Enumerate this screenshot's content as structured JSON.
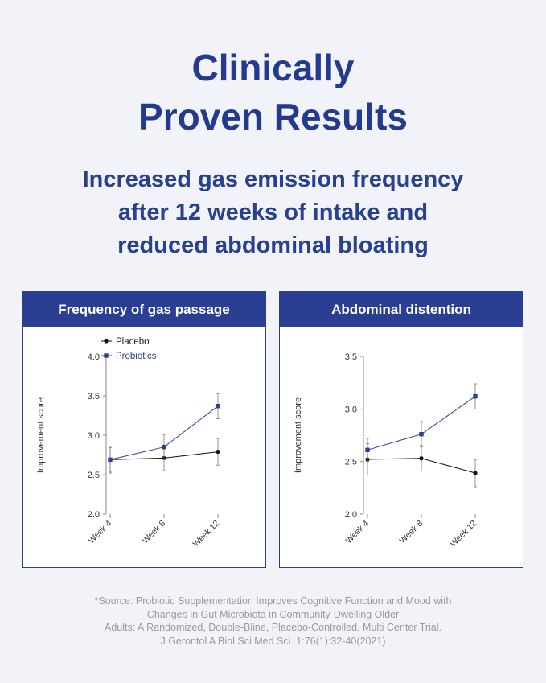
{
  "title": {
    "line1": "Clinically",
    "line2": "Proven Results"
  },
  "subtitle": {
    "line1": "Increased gas emission frequency",
    "line2": "after 12 weeks of intake and",
    "line3": "reduced abdominal bloating"
  },
  "colors": {
    "brand": "#2a3f93",
    "placebo": "#111111",
    "probiotics": "#2a3f93"
  },
  "chart_data": [
    {
      "type": "line",
      "title": "Frequency of gas passage",
      "xlabel": "",
      "ylabel": "Improvement score",
      "categories": [
        "Week 4",
        "Week 8",
        "Week 12"
      ],
      "ylim": [
        2.0,
        4.0
      ],
      "yticks": [
        "4.0",
        "3.5",
        "3.0",
        "2.5",
        "2.0"
      ],
      "ytick_values": [
        4.0,
        3.5,
        3.0,
        2.5,
        2.0
      ],
      "legend_position": "top-left",
      "series": [
        {
          "name": "Placebo",
          "marker": "circle",
          "values": [
            2.69,
            2.71,
            2.79
          ],
          "errors": [
            0.17,
            0.16,
            0.17
          ]
        },
        {
          "name": "Probiotics",
          "marker": "square",
          "values": [
            2.69,
            2.85,
            3.37
          ],
          "errors": [
            0.15,
            0.16,
            0.16
          ]
        }
      ]
    },
    {
      "type": "line",
      "title": "Abdominal distention",
      "xlabel": "",
      "ylabel": "Improvement score",
      "categories": [
        "Week 4",
        "Week 8",
        "Week 12"
      ],
      "ylim": [
        2.0,
        3.5
      ],
      "yticks": [
        "3.5",
        "3.0",
        "2.5",
        "2.0"
      ],
      "ytick_values": [
        3.5,
        3.0,
        2.5,
        2.0
      ],
      "legend_position": "none",
      "series": [
        {
          "name": "Placebo",
          "marker": "circle",
          "values": [
            2.52,
            2.53,
            2.39
          ],
          "errors": [
            0.15,
            0.12,
            0.13
          ]
        },
        {
          "name": "Probiotics",
          "marker": "square",
          "values": [
            2.61,
            2.76,
            3.12
          ],
          "errors": [
            0.11,
            0.12,
            0.12
          ]
        }
      ]
    }
  ],
  "source": {
    "line1": "*Source: Probiotic Supplementation Improves Cognitive Function and Mood with",
    "line2": "Changes in Gut Microbiota in Community-Dwelling Older",
    "line3": "Adults: A Randomized, Double-Bline, Placebo-Controlled, Multi Center Trial.",
    "line4": "J Gerontol A Biol Sci Med Sci. 1:76(1):32-40(2021)"
  }
}
